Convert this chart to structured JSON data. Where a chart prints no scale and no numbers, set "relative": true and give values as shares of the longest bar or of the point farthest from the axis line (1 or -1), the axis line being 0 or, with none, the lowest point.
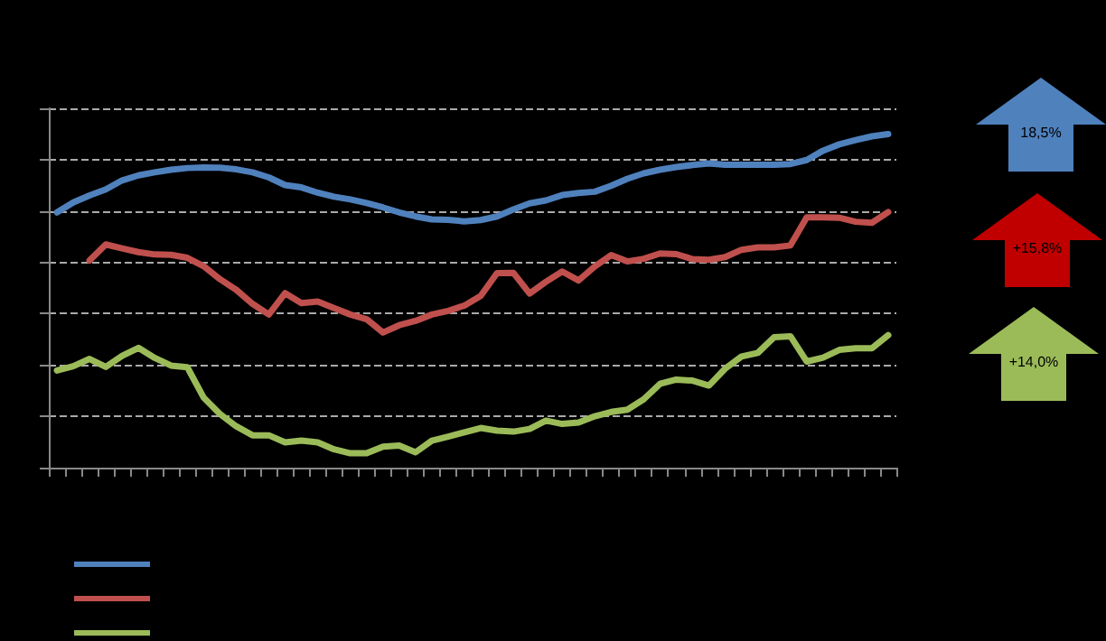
{
  "chart_data": {
    "type": "line",
    "relative": true,
    "grid": "y",
    "marker": "none",
    "line_style": "solid",
    "categories": [
      null,
      null,
      null,
      null,
      null,
      null,
      null,
      null,
      null,
      null,
      null,
      null,
      null,
      null,
      null,
      null,
      null,
      null,
      null,
      null,
      null,
      null,
      null,
      null,
      null,
      null,
      null,
      null,
      null,
      null,
      null,
      null,
      null,
      null,
      null,
      null,
      null,
      null,
      null,
      null,
      null,
      null,
      null,
      null,
      null,
      null,
      null,
      null,
      null,
      null,
      null,
      null
    ],
    "annotations": [
      "18,5%",
      "+15,8%",
      "+14,0%"
    ],
    "series": [
      {
        "color": "#4f81bd",
        "values": [
          0.765,
          0.795,
          0.816,
          0.834,
          0.861,
          0.876,
          0.885,
          0.893,
          0.898,
          0.9,
          0.899,
          0.894,
          0.885,
          0.87,
          0.847,
          0.84,
          0.824,
          0.812,
          0.804,
          0.793,
          0.78,
          0.765,
          0.753,
          0.744,
          0.743,
          0.738,
          0.742,
          0.753,
          0.774,
          0.792,
          0.801,
          0.817,
          0.823,
          0.827,
          0.845,
          0.866,
          0.882,
          0.893,
          0.901,
          0.907,
          0.912,
          0.908,
          0.908,
          0.908,
          0.908,
          0.91,
          0.922,
          0.95,
          0.969,
          0.982,
          0.993,
          1
        ]
      },
      {
        "color": "#c0504d",
        "values": [
          null,
          null,
          0.621,
          0.669,
          0.657,
          0.646,
          0.639,
          0.638,
          0.629,
          0.604,
          0.565,
          0.533,
          0.491,
          0.459,
          0.523,
          0.493,
          0.498,
          0.478,
          0.459,
          0.445,
          0.405,
          0.427,
          0.44,
          0.459,
          0.47,
          0.486,
          0.515,
          0.583,
          0.584,
          0.522,
          0.557,
          0.588,
          0.561,
          0.603,
          0.637,
          0.618,
          0.626,
          0.642,
          0.64,
          0.625,
          0.623,
          0.631,
          0.653,
          0.66,
          0.66,
          0.666,
          0.75,
          0.75,
          0.749,
          0.737,
          0.734,
          0.766
        ]
      },
      {
        "color": "#9bbb59",
        "values": [
          0.291,
          0.304,
          0.326,
          0.302,
          0.335,
          0.359,
          0.329,
          0.306,
          0.301,
          0.21,
          0.161,
          0.124,
          0.097,
          0.097,
          0.076,
          0.081,
          0.076,
          0.055,
          0.043,
          0.043,
          0.063,
          0.066,
          0.046,
          0.081,
          0.093,
          0.106,
          0.119,
          0.111,
          0.108,
          0.116,
          0.141,
          0.131,
          0.135,
          0.154,
          0.167,
          0.174,
          0.205,
          0.251,
          0.264,
          0.261,
          0.246,
          0.297,
          0.333,
          0.344,
          0.391,
          0.394,
          0.318,
          0.33,
          0.353,
          0.358,
          0.358,
          0.397
        ]
      }
    ]
  }
}
